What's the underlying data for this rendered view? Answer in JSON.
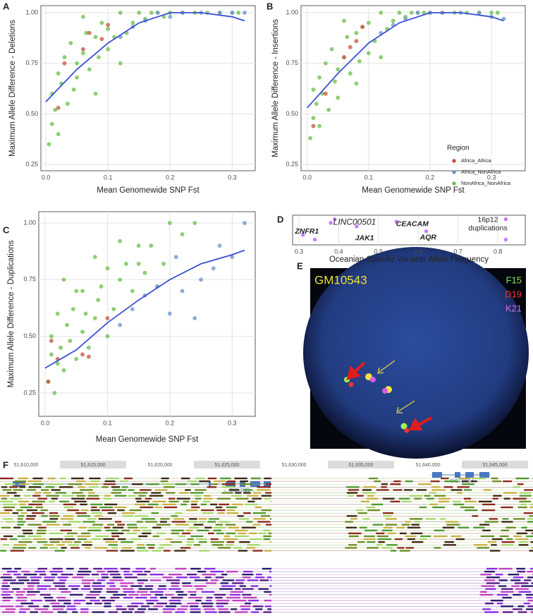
{
  "chart_data": [
    {
      "panel": "A",
      "type": "scatter",
      "xlabel": "Mean Genomewide SNP Fst",
      "ylabel": "Maximum Allele Difference - Deletions",
      "xlim": [
        -0.008,
        0.337
      ],
      "ylim": [
        0.219,
        1.035
      ],
      "xticks": [
        {
          "value": 0,
          "label": "0.0"
        },
        {
          "value": 0.1,
          "label": "0.1"
        },
        {
          "value": 0.2,
          "label": "0.2"
        },
        {
          "value": 0.3,
          "label": "0.3"
        }
      ],
      "yticks": [
        0.25,
        {
          "value": 0.5,
          "label": "0.50"
        },
        0.75,
        {
          "value": 1,
          "label": "1.00"
        }
      ],
      "grid": true,
      "series": [
        {
          "name": "NonAfrica_NonAfrica",
          "color": "#6abf4b",
          "x": [
            0.005,
            0.01,
            0.01,
            0.015,
            0.02,
            0.02,
            0.025,
            0.03,
            0.035,
            0.04,
            0.045,
            0.05,
            0.05,
            0.06,
            0.065,
            0.07,
            0.08,
            0.085,
            0.09,
            0.1,
            0.1,
            0.11,
            0.12,
            0.13,
            0.14,
            0.15,
            0.16,
            0.17,
            0.18,
            0.19,
            0.2,
            0.22,
            0.24,
            0.26,
            0.28,
            0.3,
            0.31,
            0.12,
            0.08,
            0.06
          ],
          "y": [
            0.35,
            0.45,
            0.6,
            0.52,
            0.7,
            0.4,
            0.65,
            0.78,
            0.55,
            0.85,
            0.62,
            0.75,
            0.68,
            0.8,
            0.9,
            0.72,
            0.88,
            0.78,
            0.95,
            0.82,
            0.92,
            0.88,
            1.0,
            0.9,
            0.95,
            1.0,
            0.97,
            1.0,
            1.0,
            0.98,
            1.0,
            1.0,
            1.0,
            1.0,
            1.0,
            1.0,
            1.0,
            0.75,
            0.6,
            0.98
          ]
        },
        {
          "name": "Africa_NonAfrica",
          "color": "#6f93c9",
          "x": [
            0.12,
            0.14,
            0.16,
            0.18,
            0.2,
            0.22,
            0.25,
            0.28,
            0.3,
            0.32
          ],
          "y": [
            0.88,
            0.93,
            0.96,
            1.0,
            0.98,
            1.0,
            1.0,
            1.0,
            1.0,
            1.0
          ]
        },
        {
          "name": "Africa_Africa",
          "color": "#c9523d",
          "x": [
            0.02,
            0.03,
            0.06,
            0.07,
            0.09,
            0.1
          ],
          "y": [
            0.53,
            0.75,
            0.82,
            0.9,
            0.87,
            0.94
          ]
        }
      ],
      "trend": {
        "color": "#3b50d6",
        "x": [
          0,
          0.05,
          0.1,
          0.15,
          0.2,
          0.25,
          0.3,
          0.32
        ],
        "y": [
          0.56,
          0.72,
          0.85,
          0.95,
          1.0,
          1.0,
          0.98,
          0.96
        ]
      }
    },
    {
      "panel": "B",
      "type": "scatter",
      "xlabel": "Mean Genomewide SNP Fst",
      "ylabel": "Maximum Allele Difference - Insertions",
      "xlim": [
        -0.01,
        0.355
      ],
      "ylim": [
        0.219,
        1.035
      ],
      "xticks": [
        {
          "value": 0,
          "label": "0.0"
        },
        {
          "value": 0.1,
          "label": "0.1"
        },
        {
          "value": 0.2,
          "label": "0.2"
        },
        {
          "value": 0.3,
          "label": "0.3"
        }
      ],
      "yticks": [
        0.25,
        {
          "value": 0.5,
          "label": "0.50"
        },
        0.75,
        {
          "value": 1,
          "label": "1.00"
        }
      ],
      "grid": true,
      "legend_title": "Region",
      "series": [
        {
          "name": "NonAfrica_NonAfrica",
          "color": "#6abf4b",
          "x": [
            0.005,
            0.01,
            0.01,
            0.015,
            0.02,
            0.02,
            0.025,
            0.03,
            0.035,
            0.04,
            0.045,
            0.05,
            0.05,
            0.06,
            0.065,
            0.07,
            0.08,
            0.085,
            0.09,
            0.1,
            0.1,
            0.11,
            0.12,
            0.13,
            0.14,
            0.15,
            0.16,
            0.17,
            0.18,
            0.19,
            0.2,
            0.22,
            0.24,
            0.26,
            0.28,
            0.3,
            0.31,
            0.12,
            0.08,
            0.06
          ],
          "y": [
            0.38,
            0.48,
            0.62,
            0.55,
            0.68,
            0.44,
            0.6,
            0.75,
            0.52,
            0.82,
            0.66,
            0.72,
            0.58,
            0.78,
            0.88,
            0.7,
            0.9,
            0.76,
            0.93,
            0.8,
            0.95,
            0.86,
            1.0,
            0.92,
            0.96,
            1.0,
            0.98,
            1.0,
            1.0,
            1.0,
            1.0,
            1.0,
            1.0,
            1.0,
            1.0,
            1.0,
            1.0,
            0.78,
            0.65,
            0.96
          ]
        },
        {
          "name": "Africa_NonAfrica",
          "color": "#6f93c9",
          "x": [
            0.12,
            0.14,
            0.16,
            0.18,
            0.2,
            0.22,
            0.25,
            0.28,
            0.3,
            0.32
          ],
          "y": [
            0.9,
            0.94,
            0.97,
            1.0,
            1.0,
            1.0,
            1.0,
            1.0,
            0.98,
            0.97
          ]
        },
        {
          "name": "Africa_Africa",
          "color": "#c9523d",
          "x": [
            0.01,
            0.03,
            0.06,
            0.07,
            0.08,
            0.09
          ],
          "y": [
            0.44,
            0.6,
            0.78,
            0.83,
            0.86,
            0.93
          ]
        }
      ],
      "trend": {
        "color": "#3b50d6",
        "x": [
          0,
          0.05,
          0.1,
          0.15,
          0.2,
          0.25,
          0.3,
          0.32
        ],
        "y": [
          0.53,
          0.7,
          0.85,
          0.95,
          1.0,
          1.0,
          0.98,
          0.96
        ]
      }
    },
    {
      "panel": "C",
      "type": "scatter",
      "xlabel": "Mean Genomewide SNP Fst",
      "ylabel": "Maximum Allele Difference - Duplications",
      "xlim": [
        -0.0102,
        0.337
      ],
      "ylim": [
        0.147,
        1.05
      ],
      "xticks": [
        {
          "value": 0,
          "label": "0.0"
        },
        {
          "value": 0.1,
          "label": "0.1"
        },
        {
          "value": 0.2,
          "label": "0.2"
        },
        {
          "value": 0.3,
          "label": "0.3"
        }
      ],
      "yticks": [
        0.25,
        {
          "value": 0.5,
          "label": "0.50"
        },
        0.75,
        {
          "value": 1,
          "label": "1.00"
        }
      ],
      "grid": true,
      "series": [
        {
          "name": "NonAfrica_NonAfrica",
          "color": "#6abf4b",
          "x": [
            0.005,
            0.01,
            0.01,
            0.015,
            0.02,
            0.02,
            0.025,
            0.03,
            0.035,
            0.04,
            0.045,
            0.05,
            0.05,
            0.06,
            0.065,
            0.07,
            0.08,
            0.085,
            0.09,
            0.1,
            0.1,
            0.11,
            0.12,
            0.13,
            0.14,
            0.15,
            0.16,
            0.17,
            0.18,
            0.19,
            0.2,
            0.22,
            0.24,
            0.15,
            0.12,
            0.08,
            0.06,
            0.03
          ],
          "y": [
            0.3,
            0.42,
            0.5,
            0.25,
            0.38,
            0.6,
            0.45,
            0.35,
            0.55,
            0.48,
            0.62,
            0.4,
            0.7,
            0.52,
            0.6,
            0.45,
            0.58,
            0.66,
            0.72,
            0.5,
            0.8,
            0.62,
            0.75,
            0.82,
            0.7,
            0.82,
            0.78,
            0.9,
            0.72,
            0.82,
            1.0,
            0.95,
            1.0,
            0.9,
            0.92,
            0.85,
            0.7,
            0.75
          ]
        },
        {
          "name": "Africa_NonAfrica",
          "color": "#6f93c9",
          "x": [
            0.12,
            0.14,
            0.16,
            0.18,
            0.2,
            0.21,
            0.22,
            0.24,
            0.25,
            0.27,
            0.28,
            0.3,
            0.32
          ],
          "y": [
            0.55,
            0.62,
            0.68,
            0.72,
            0.6,
            0.85,
            0.7,
            0.58,
            0.75,
            0.8,
            0.9,
            0.85,
            1.0
          ]
        },
        {
          "name": "Africa_Africa",
          "color": "#c9523d",
          "x": [
            0.005,
            0.01,
            0.02,
            0.06,
            0.07,
            0.1
          ],
          "y": [
            0.3,
            0.48,
            0.4,
            0.42,
            0.41,
            0.58
          ]
        }
      ],
      "trend": {
        "color": "#3b50d6",
        "x": [
          0,
          0.05,
          0.1,
          0.15,
          0.2,
          0.25,
          0.3,
          0.32
        ],
        "y": [
          0.36,
          0.44,
          0.56,
          0.66,
          0.75,
          0.82,
          0.86,
          0.88
        ]
      }
    },
    {
      "panel": "D",
      "type": "strip",
      "xlabel": "Oceanian-Specific Variants Allele Frequency",
      "xlim": [
        0.284,
        0.869
      ],
      "xticks": [
        0.3,
        0.4,
        0.5,
        0.6,
        0.7,
        0.8
      ],
      "grid": true,
      "color": "#c77cff",
      "x": [
        0.31,
        0.34,
        0.38,
        0.39,
        0.445,
        0.545,
        0.62,
        0.82,
        0.82
      ],
      "annotations": [
        {
          "text": "ZNFR1",
          "x": 0.32
        },
        {
          "text": "LINC00501",
          "x": 0.44
        },
        {
          "text": "JAK1",
          "x": 0.465
        },
        {
          "text": "CEACAM",
          "x": 0.585
        },
        {
          "text": "AQR",
          "x": 0.625
        },
        {
          "text": "16p12 duplications",
          "x": 0.775
        }
      ]
    }
  ],
  "panel_e": {
    "label": "E",
    "cell_line": "GM10543",
    "probes": [
      "F15",
      "D19",
      "K21"
    ]
  },
  "panel_f": {
    "label": "F",
    "coordinates": [
      {
        "value": 51610000,
        "label": "51,610,000"
      },
      {
        "value": 51615000,
        "label": "51,615,000"
      },
      {
        "value": 51620000,
        "label": "51,620,000"
      },
      {
        "value": 51625000,
        "label": "51,625,000"
      },
      {
        "value": 51630000,
        "label": "51,630,000"
      },
      {
        "value": 51635000,
        "label": "51,635,000"
      },
      {
        "value": 51640000,
        "label": "51,640,000"
      },
      {
        "value": 51645000,
        "label": "51,645,000"
      }
    ],
    "genes": [
      "← SIGLEC5 ←",
      "← SIGLEC14 ←"
    ]
  }
}
